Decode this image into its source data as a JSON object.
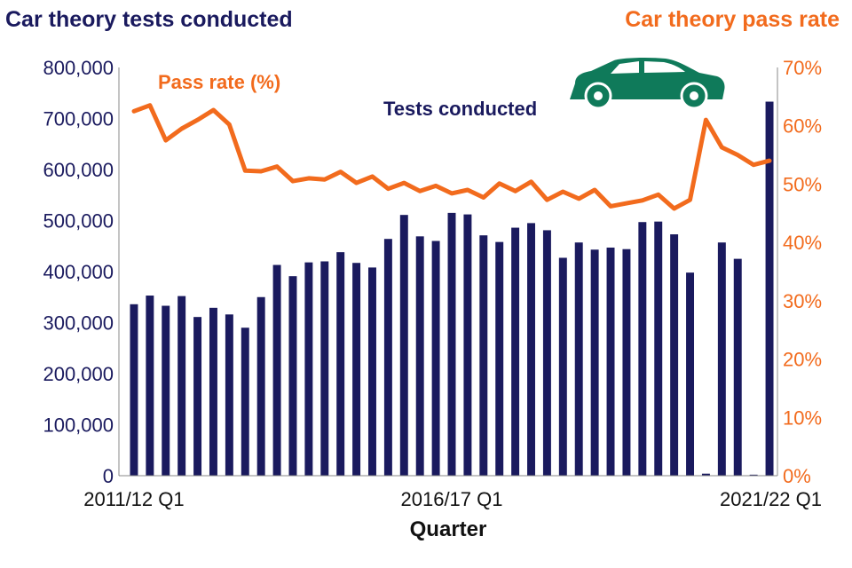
{
  "titles": {
    "left": "Car theory tests conducted",
    "right": "Car theory pass rate"
  },
  "annotations": {
    "pass_rate": "Pass rate (%)",
    "tests": "Tests conducted"
  },
  "colors": {
    "bars": "#1a1a5e",
    "line": "#f26b1d",
    "car": "#0f7a5a"
  },
  "icons": {
    "car": "car-icon"
  },
  "chart_data": {
    "type": "bar",
    "xlabel": "Quarter",
    "x_tick_labels": [
      "2011/12 Q1",
      "2016/17 Q1",
      "2021/22 Q1"
    ],
    "x_tick_indices": [
      0,
      20,
      40
    ],
    "y_left": {
      "range": [
        0,
        800000
      ],
      "ticks": [
        0,
        100000,
        200000,
        300000,
        400000,
        500000,
        600000,
        700000,
        800000
      ],
      "tick_labels": [
        "0",
        "100,000",
        "200,000",
        "300,000",
        "400,000",
        "500,000",
        "600,000",
        "700,000",
        "800,000"
      ]
    },
    "y_right": {
      "range": [
        0,
        70
      ],
      "ticks": [
        0,
        10,
        20,
        30,
        40,
        50,
        60,
        70
      ],
      "tick_labels": [
        "0%",
        "10%",
        "20%",
        "30%",
        "40%",
        "50%",
        "60%",
        "70%"
      ]
    },
    "grid": false,
    "series": [
      {
        "name": "Tests conducted",
        "type": "bar",
        "axis": "left",
        "values": [
          336000,
          353000,
          333000,
          352000,
          311000,
          329000,
          316000,
          290000,
          350000,
          413000,
          391000,
          418000,
          420000,
          438000,
          417000,
          408000,
          464000,
          511000,
          469000,
          460000,
          515000,
          512000,
          471000,
          458000,
          486000,
          495000,
          481000,
          427000,
          457000,
          443000,
          447000,
          444000,
          497000,
          498000,
          473000,
          398000,
          4000,
          457000,
          425000,
          2000,
          733000
        ]
      },
      {
        "name": "Pass rate (%)",
        "type": "line",
        "axis": "right",
        "values": [
          62.5,
          63.5,
          57.5,
          59.5,
          61.0,
          62.7,
          60.2,
          52.3,
          52.2,
          53.0,
          50.5,
          51.0,
          50.8,
          52.1,
          50.2,
          51.3,
          49.2,
          50.2,
          48.8,
          49.7,
          48.4,
          49.0,
          47.7,
          50.1,
          48.8,
          50.4,
          47.3,
          48.7,
          47.5,
          49.0,
          46.2,
          46.7,
          47.2,
          48.2,
          45.8,
          47.3,
          61.0,
          56.3,
          55.0,
          53.3,
          54.0
        ]
      }
    ]
  }
}
